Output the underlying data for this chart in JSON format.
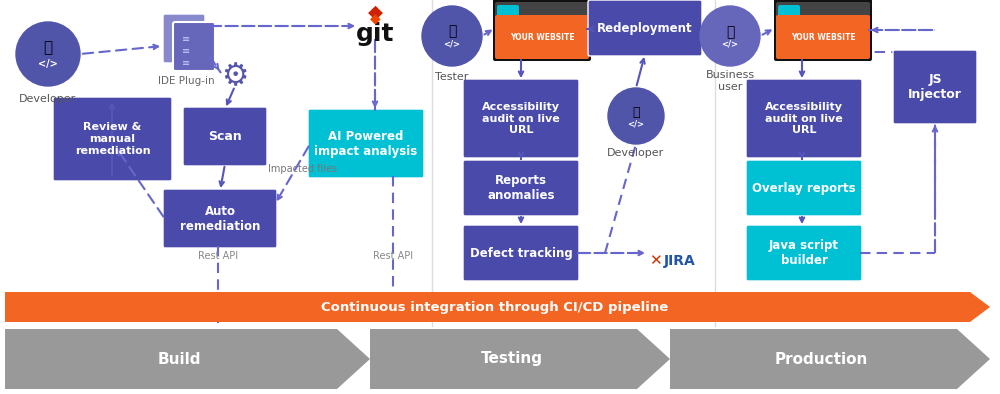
{
  "fig_width": 10.0,
  "fig_height": 3.94,
  "bg_color": "#ffffff",
  "purple": "#4a4aaa",
  "cyan": "#00c0d4",
  "orange": "#f26522",
  "gray": "#aaaaaa",
  "arrow_solid": "#5555bb",
  "arrow_dash": "#6666cc",
  "text_gray": "#666666",
  "continuous_text": "Continuous integration through CI/CD pipeline",
  "build_text": "Build",
  "testing_text": "Testing",
  "production_text": "Production"
}
